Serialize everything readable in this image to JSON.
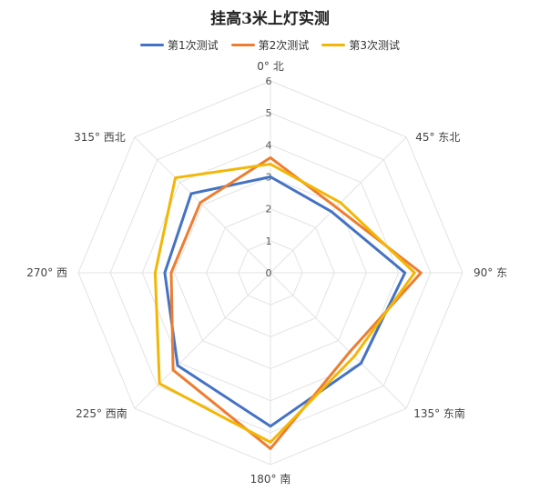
{
  "chart_data": {
    "type": "radar",
    "title": "挂高3米上灯实测",
    "categories": [
      "0°  北",
      "45°  东北",
      "90°  东",
      "135°  东南",
      "180°  南",
      "225°  西南",
      "270°  西",
      "315°  西北"
    ],
    "rlim": [
      0,
      6
    ],
    "ticks": [
      "0",
      "1",
      "2",
      "3",
      "4",
      "5",
      "6"
    ],
    "grid": true,
    "legend_position": "top",
    "series": [
      {
        "name": "第1次测试",
        "color": "#4472C4",
        "values": [
          3.0,
          2.7,
          4.2,
          4.0,
          4.8,
          4.1,
          3.3,
          3.5
        ]
      },
      {
        "name": "第2次测试",
        "color": "#ED7D31",
        "values": [
          3.6,
          2.9,
          4.7,
          3.5,
          5.5,
          4.3,
          3.1,
          3.1
        ]
      },
      {
        "name": "第3次测试",
        "color": "#F2B705",
        "values": [
          3.4,
          3.1,
          4.5,
          3.7,
          5.3,
          4.9,
          3.6,
          4.2
        ]
      }
    ]
  }
}
